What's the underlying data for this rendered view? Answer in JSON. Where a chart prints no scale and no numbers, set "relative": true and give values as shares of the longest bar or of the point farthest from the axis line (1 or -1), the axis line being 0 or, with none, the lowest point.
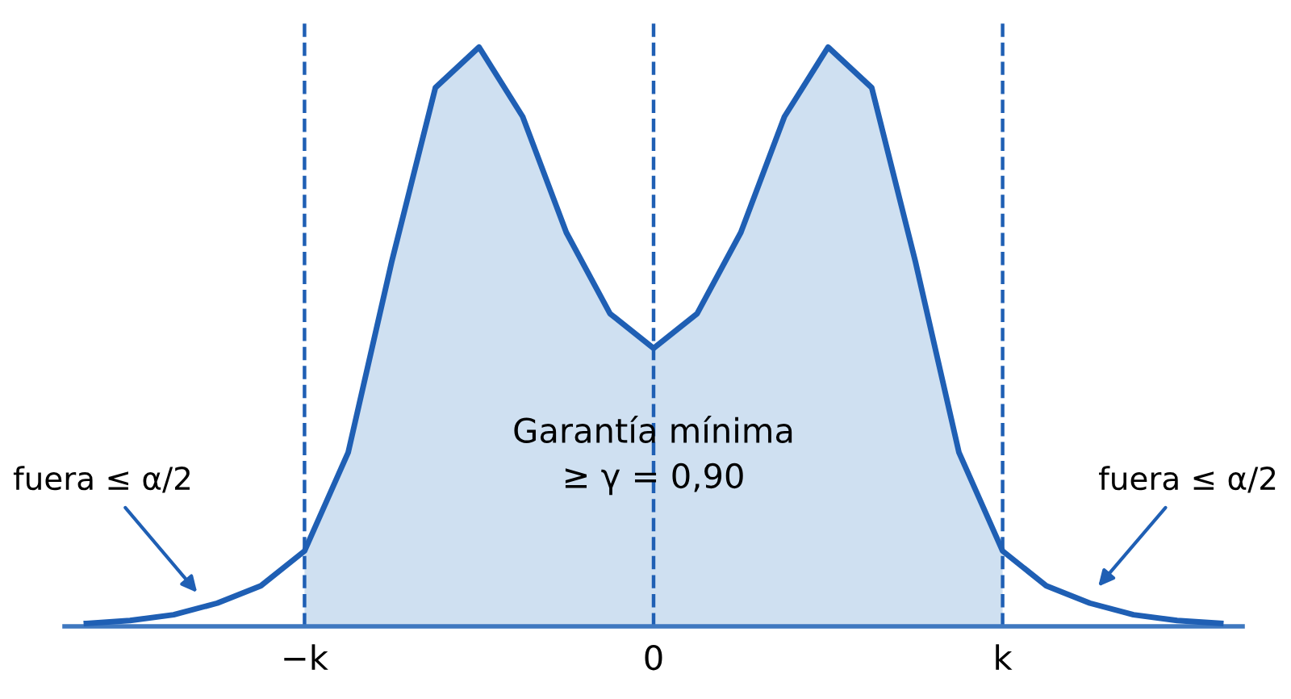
{
  "chart_data": {
    "type": "line",
    "relative": true,
    "categories": [
      null,
      null,
      null,
      null,
      null,
      null,
      "−k",
      null,
      null,
      null,
      null,
      null,
      null,
      null,
      "0",
      null,
      null,
      null,
      null,
      null,
      null,
      null,
      "k",
      null,
      null,
      null,
      null,
      null,
      null
    ],
    "series": [
      {
        "type": "area",
        "color": "#cfe0f1",
        "values": [
          null,
          null,
          null,
          null,
          null,
          null,
          0.13,
          0.3,
          0.63,
          0.93,
          1.0,
          0.88,
          0.68,
          0.54,
          0.48,
          0.54,
          0.68,
          0.88,
          1.0,
          0.93,
          0.63,
          0.3,
          0.13,
          null,
          null,
          null,
          null,
          null,
          null
        ]
      },
      {
        "color": "#1f5fb4",
        "values": [
          null,
          0.005,
          0.01,
          0.02,
          0.04,
          0.07,
          0.13,
          0.3,
          0.63,
          0.93,
          1.0,
          0.88,
          0.68,
          0.54,
          0.48,
          0.54,
          0.68,
          0.88,
          1.0,
          0.93,
          0.63,
          0.3,
          0.13,
          0.07,
          0.04,
          0.02,
          0.01,
          0.005,
          null
        ]
      }
    ],
    "ref_lines": [
      {
        "axis": "x",
        "value": "−k",
        "color": "#1f5fb4",
        "line_style": "dashed"
      },
      {
        "axis": "x",
        "value": "0",
        "color": "#1f5fb4",
        "line_style": "dashed"
      },
      {
        "axis": "x",
        "value": "k",
        "color": "#1f5fb4",
        "line_style": "dashed"
      }
    ],
    "annotations": [
      "Garantía mínima\n≥ γ = 0,90",
      "fuera ≤ α/2",
      "fuera ≤ α/2"
    ],
    "grid": false,
    "legend": false,
    "marker": "none"
  }
}
